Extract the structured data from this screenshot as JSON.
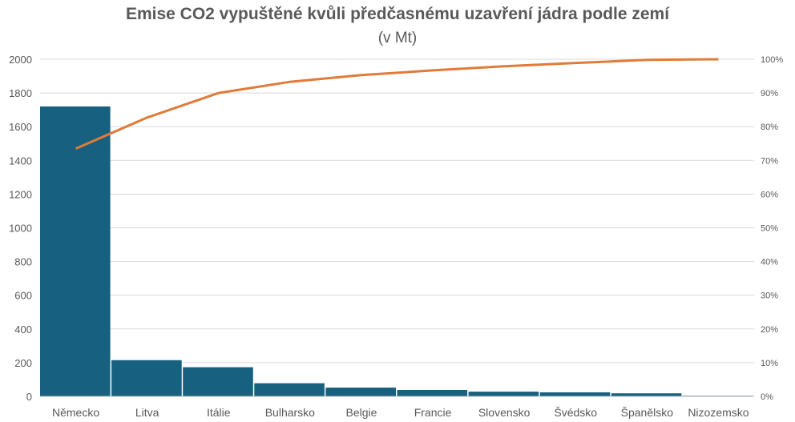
{
  "chart_data": {
    "type": "bar",
    "title": "Emise CO2 vypuštěné kvůli předčasnému uzavření jádra podle zemí",
    "subtitle": "(v Mt)",
    "categories": [
      "Německo",
      "Litva",
      "Itálie",
      "Bulharsko",
      "Belgie",
      "Francie",
      "Slovensko",
      "Švédsko",
      "Španělsko",
      "Nizozemsko"
    ],
    "series": [
      {
        "type": "bar",
        "values": [
          1720,
          215,
          173,
          78,
          52,
          38,
          28,
          24,
          18,
          4
        ],
        "color": "#17607f"
      },
      {
        "type": "line",
        "axis": "right",
        "values": [
          73.5,
          82.7,
          90.0,
          93.3,
          95.3,
          96.7,
          97.9,
          98.9,
          99.8,
          100.0
        ],
        "color": "#e07b39"
      }
    ],
    "ylim": [
      0,
      2000
    ],
    "yticks": [
      "0",
      "200",
      "400",
      "600",
      "800",
      "1000",
      "1200",
      "1400",
      "1600",
      "1800",
      "2000"
    ],
    "y2lim": [
      0,
      100
    ],
    "y2ticks": [
      "0%",
      "10%",
      "20%",
      "30%",
      "40%",
      "50%",
      "60%",
      "70%",
      "80%",
      "90%",
      "100%"
    ],
    "grid": true,
    "legend": "none"
  }
}
